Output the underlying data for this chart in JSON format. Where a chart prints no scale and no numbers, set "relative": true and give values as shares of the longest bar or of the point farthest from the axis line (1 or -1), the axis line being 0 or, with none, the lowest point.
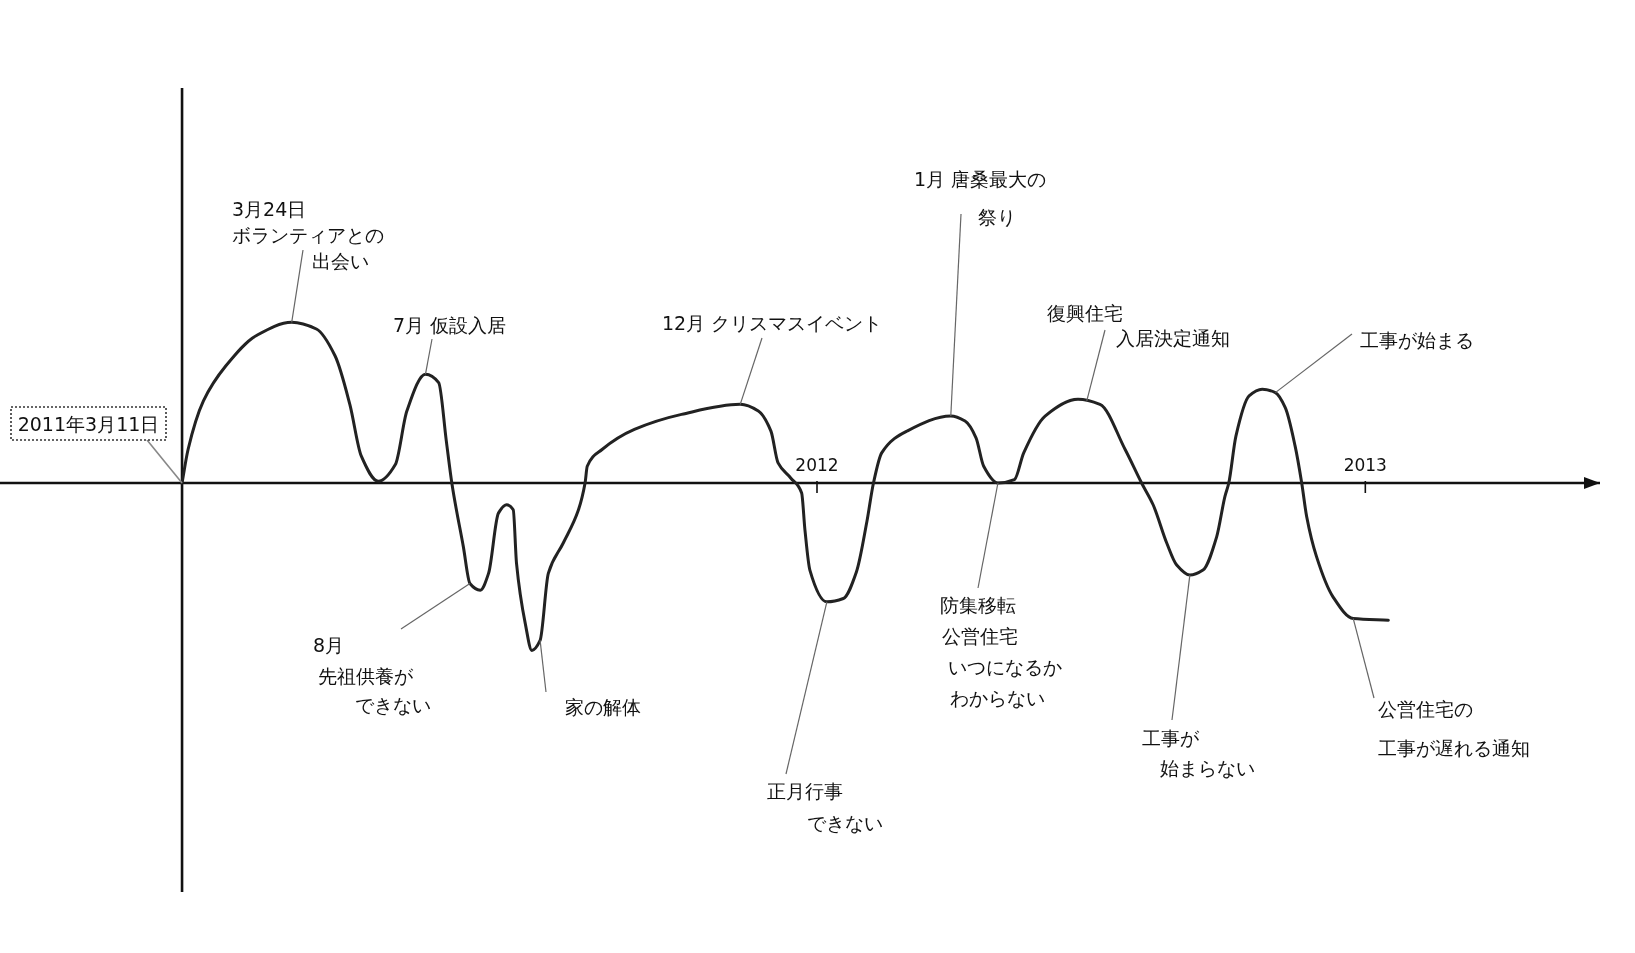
{
  "chart_data": {
    "type": "line",
    "relative": true,
    "x": [
      2010.842,
      2010.853,
      2010.881,
      2010.922,
      2010.977,
      2011.042,
      2011.087,
      2011.121,
      2011.148,
      2011.169,
      2011.2,
      2011.231,
      2011.252,
      2011.286,
      2011.31,
      2011.324,
      2011.334,
      2011.355,
      2011.367,
      2011.386,
      2011.401,
      2011.419,
      2011.434,
      2011.446,
      2011.452,
      2011.468,
      2011.48,
      2011.495,
      2011.51,
      2011.537,
      2011.565,
      2011.577,
      2011.581,
      2011.608,
      2011.667,
      2011.753,
      2011.86,
      2011.893,
      2011.916,
      2011.929,
      2011.952,
      2011.972,
      2011.978,
      2011.987,
      2012.018,
      2012.048,
      2012.072,
      2012.091,
      2012.103,
      2012.118,
      2012.164,
      2012.244,
      2012.27,
      2012.29,
      2012.304,
      2012.33,
      2012.36,
      2012.377,
      2012.416,
      2012.476,
      2012.516,
      2012.562,
      2012.592,
      2012.613,
      2012.638,
      2012.656,
      2012.68,
      2012.704,
      2012.729,
      2012.744,
      2012.751,
      2012.764,
      2012.788,
      2012.812,
      2012.836,
      2012.854,
      2012.872,
      2012.884,
      2012.893,
      2012.911,
      2012.941,
      2012.978,
      2013.042
    ],
    "series": [
      {
        "color": "#222222",
        "values": [
          0,
          0.2,
          0.49,
          0.7,
          0.88,
          0.96,
          0.92,
          0.76,
          0.47,
          0.16,
          0.01,
          0.11,
          0.43,
          0.65,
          0.6,
          0.25,
          0,
          -0.38,
          -0.6,
          -0.64,
          -0.54,
          -0.18,
          -0.13,
          -0.16,
          -0.48,
          -0.84,
          -1,
          -0.94,
          -0.54,
          -0.36,
          -0.16,
          0,
          0.1,
          0.2,
          0.32,
          0.41,
          0.47,
          0.43,
          0.31,
          0.12,
          0.03,
          -0.06,
          -0.28,
          -0.52,
          -0.71,
          -0.69,
          -0.53,
          -0.23,
          0,
          0.18,
          0.31,
          0.4,
          0.37,
          0.27,
          0.1,
          0,
          0.02,
          0.18,
          0.4,
          0.5,
          0.47,
          0.2,
          0,
          -0.13,
          -0.36,
          -0.49,
          -0.55,
          -0.52,
          -0.32,
          -0.08,
          0,
          0.28,
          0.52,
          0.56,
          0.54,
          0.45,
          0.22,
          0,
          -0.2,
          -0.44,
          -0.68,
          -0.81,
          -0.82
        ]
      }
    ],
    "xlim": [
      2010.51,
      2013.428
    ],
    "xticks": [
      2012,
      2013
    ],
    "tick_labels": "x",
    "ref_lines": [
      {
        "axis": "x",
        "value": 2010.842,
        "color": "#111111"
      }
    ],
    "annotations": [
      {
        "text": "2011年3月11日",
        "x": 2010.842,
        "y": 0
      },
      {
        "text": "3月24日ボランティアとの出会い",
        "x": 2011.042,
        "y": 0.96
      },
      {
        "text": "7月 仮設入居",
        "x": 2011.286,
        "y": 0.65
      },
      {
        "text": "8月先祖供養ができない",
        "x": 2011.367,
        "y": -0.6
      },
      {
        "text": "家の解体",
        "x": 2011.495,
        "y": -0.94
      },
      {
        "text": "12月 クリスマスイベント",
        "x": 2011.86,
        "y": 0.47
      },
      {
        "text": "正月行事できない",
        "x": 2012.018,
        "y": -0.71
      },
      {
        "text": "1月 唐桑最大の祭り",
        "x": 2012.244,
        "y": 0.4
      },
      {
        "text": "防集移転公営住宅いつになるかわからない",
        "x": 2012.33,
        "y": 0
      },
      {
        "text": "復興住宅入居決定通知",
        "x": 2012.492,
        "y": 0.49
      },
      {
        "text": "工事が始まらない",
        "x": 2012.68,
        "y": -0.55
      },
      {
        "text": "工事が始まる",
        "x": 2012.836,
        "y": 0.54
      },
      {
        "text": "公営住宅の工事が遅れる通知",
        "x": 2012.978,
        "y": -0.81
      }
    ]
  }
}
